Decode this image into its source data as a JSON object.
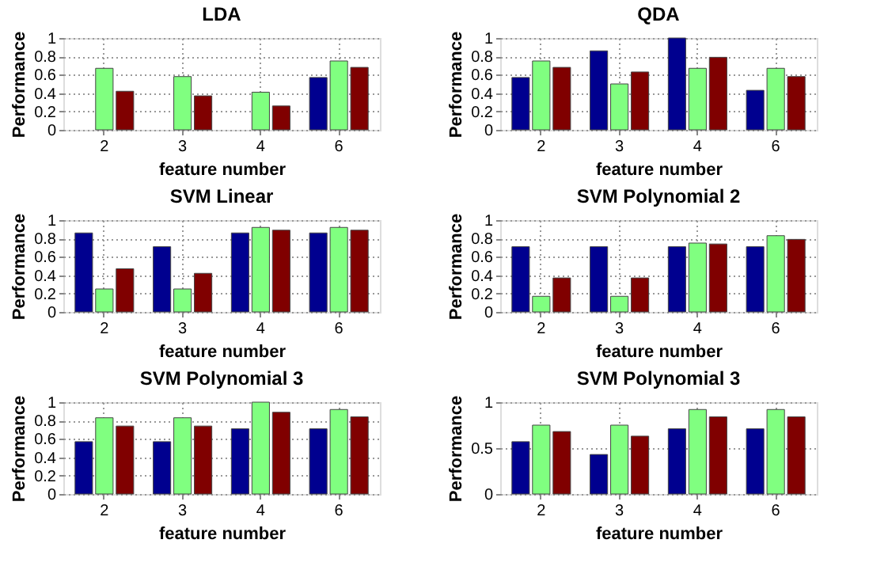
{
  "chart_data": [
    {
      "type": "bar",
      "title": "LDA",
      "xlabel": "feature number",
      "ylabel": "Performance",
      "categories": [
        "2",
        "3",
        "4",
        "6"
      ],
      "ylim": [
        0,
        1
      ],
      "yticks": [
        0,
        0.2,
        0.4,
        0.6,
        0.8,
        1
      ],
      "grid": true,
      "series": [
        {
          "color": "#00008f",
          "values": [
            null,
            null,
            null,
            0.57
          ]
        },
        {
          "color": "#80ff80",
          "values": [
            0.67,
            0.58,
            0.41,
            0.75
          ]
        },
        {
          "color": "#800000",
          "values": [
            0.42,
            0.37,
            0.26,
            0.68
          ]
        }
      ]
    },
    {
      "type": "bar",
      "title": "QDA",
      "xlabel": "feature number",
      "ylabel": "Performance",
      "categories": [
        "2",
        "3",
        "4",
        "6"
      ],
      "ylim": [
        0,
        1
      ],
      "yticks": [
        0,
        0.2,
        0.4,
        0.6,
        0.8,
        1
      ],
      "grid": true,
      "series": [
        {
          "color": "#00008f",
          "values": [
            0.57,
            0.86,
            1.0,
            0.43
          ]
        },
        {
          "color": "#80ff80",
          "values": [
            0.75,
            0.5,
            0.67,
            0.67
          ]
        },
        {
          "color": "#800000",
          "values": [
            0.68,
            0.63,
            0.79,
            0.58
          ]
        }
      ]
    },
    {
      "type": "bar",
      "title": "SVM Linear",
      "xlabel": "feature number",
      "ylabel": "Performance",
      "categories": [
        "2",
        "3",
        "4",
        "6"
      ],
      "ylim": [
        0,
        1
      ],
      "yticks": [
        0,
        0.2,
        0.4,
        0.6,
        0.8,
        1
      ],
      "grid": true,
      "series": [
        {
          "color": "#00008f",
          "values": [
            0.86,
            0.71,
            0.86,
            0.86
          ]
        },
        {
          "color": "#80ff80",
          "values": [
            0.25,
            0.25,
            0.92,
            0.92
          ]
        },
        {
          "color": "#800000",
          "values": [
            0.47,
            0.42,
            0.89,
            0.89
          ]
        }
      ]
    },
    {
      "type": "bar",
      "title": "SVM Polynomial 2",
      "xlabel": "feature number",
      "ylabel": "Performance",
      "categories": [
        "2",
        "3",
        "4",
        "6"
      ],
      "ylim": [
        0,
        1
      ],
      "yticks": [
        0,
        0.2,
        0.4,
        0.6,
        0.8,
        1
      ],
      "grid": true,
      "series": [
        {
          "color": "#00008f",
          "values": [
            0.71,
            0.71,
            0.71,
            0.71
          ]
        },
        {
          "color": "#80ff80",
          "values": [
            0.17,
            0.17,
            0.75,
            0.83
          ]
        },
        {
          "color": "#800000",
          "values": [
            0.37,
            0.37,
            0.74,
            0.79
          ]
        }
      ]
    },
    {
      "type": "bar",
      "title": "SVM Polynomial 3",
      "xlabel": "feature number",
      "ylabel": "Performance",
      "categories": [
        "2",
        "3",
        "4",
        "6"
      ],
      "ylim": [
        0,
        1
      ],
      "yticks": [
        0,
        0.2,
        0.4,
        0.6,
        0.8,
        1
      ],
      "grid": true,
      "series": [
        {
          "color": "#00008f",
          "values": [
            0.57,
            0.57,
            0.71,
            0.71
          ]
        },
        {
          "color": "#80ff80",
          "values": [
            0.83,
            0.83,
            1.0,
            0.92
          ]
        },
        {
          "color": "#800000",
          "values": [
            0.74,
            0.74,
            0.89,
            0.84
          ]
        }
      ]
    },
    {
      "type": "bar",
      "title": "SVM Polynomial 3",
      "xlabel": "feature number",
      "ylabel": "Performance",
      "categories": [
        "2",
        "3",
        "4",
        "6"
      ],
      "ylim": [
        0,
        1
      ],
      "yticks": [
        0,
        0.5,
        1
      ],
      "grid": true,
      "series": [
        {
          "color": "#00008f",
          "values": [
            0.57,
            0.43,
            0.71,
            0.71
          ]
        },
        {
          "color": "#80ff80",
          "values": [
            0.75,
            0.75,
            0.92,
            0.92
          ]
        },
        {
          "color": "#800000",
          "values": [
            0.68,
            0.63,
            0.84,
            0.84
          ]
        }
      ]
    }
  ]
}
